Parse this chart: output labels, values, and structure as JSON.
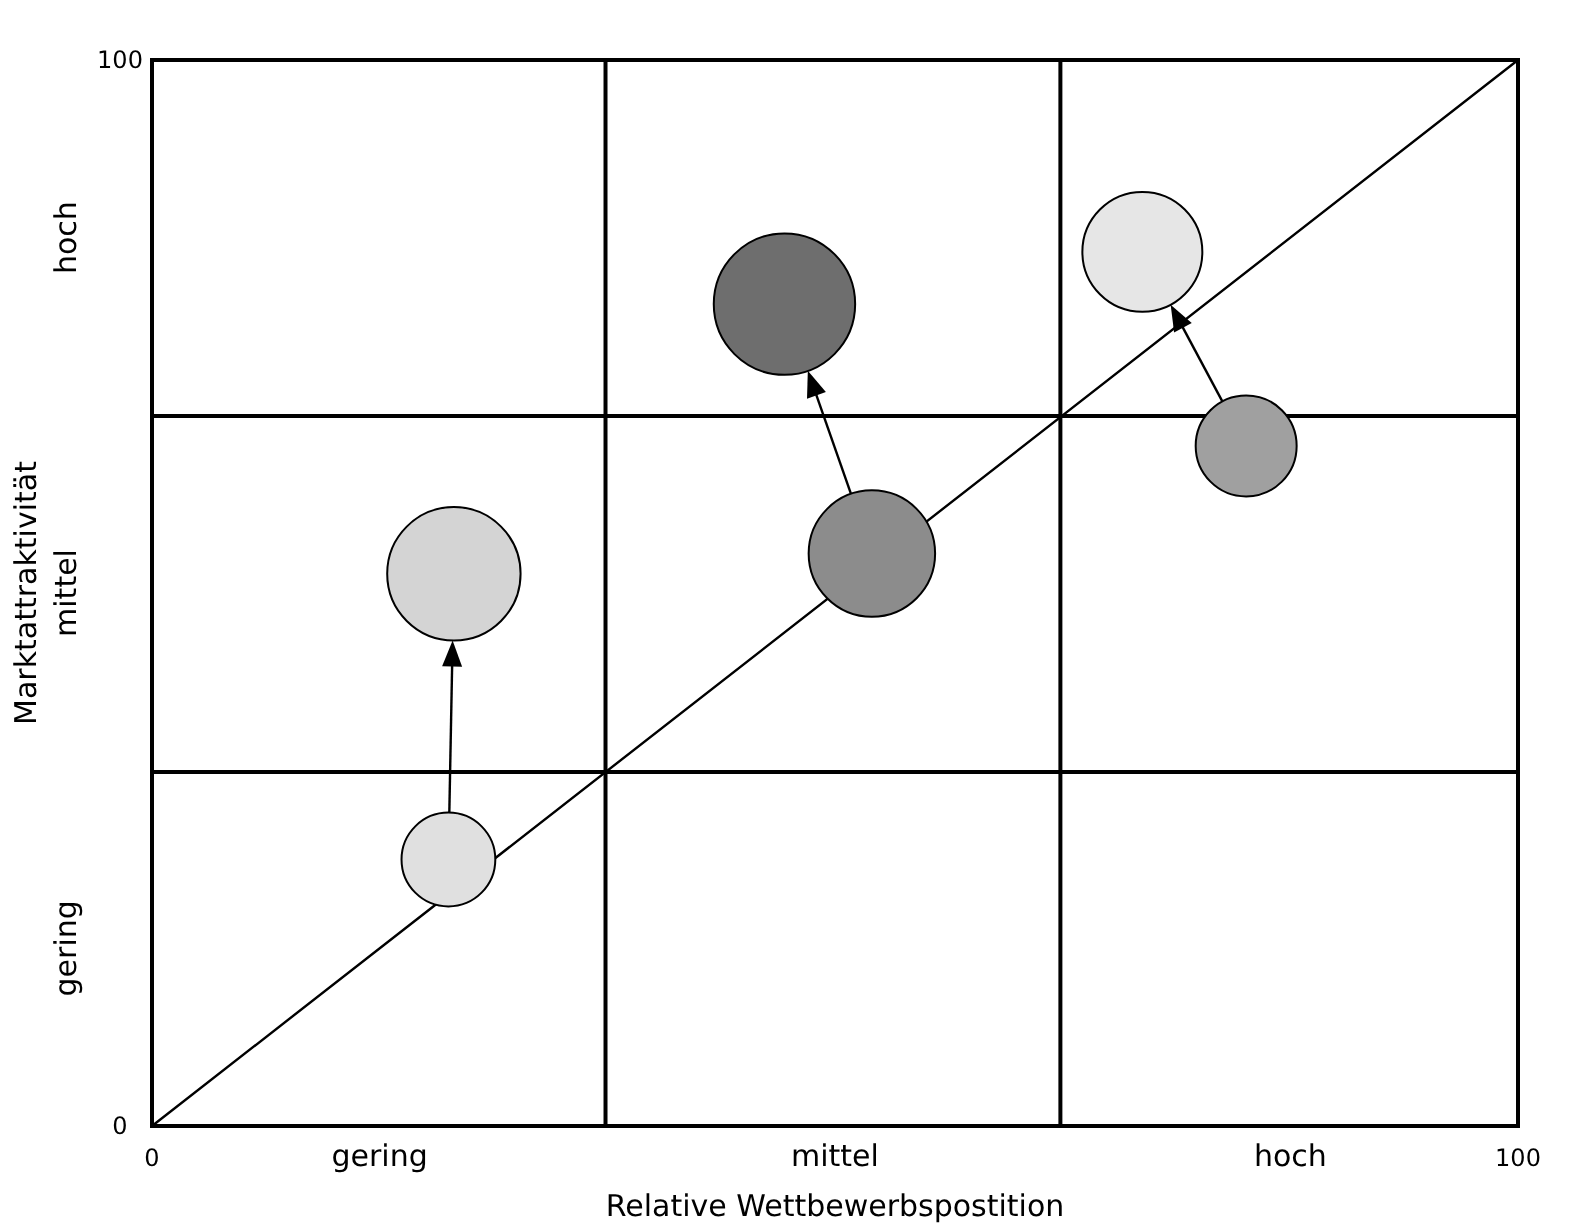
{
  "chart_data": {
    "type": "bubble",
    "xlabel": "Relative Wettbewerbspostition",
    "ylabel": "Marktattraktivität",
    "xlim": [
      0,
      100
    ],
    "ylim": [
      0,
      100
    ],
    "xticks": [
      0,
      100
    ],
    "yticks": [
      0,
      100
    ],
    "annotations": [
      "gering",
      "mittel",
      "hoch",
      "gering",
      "mittel",
      "hoch"
    ],
    "ref_lines": [
      {
        "axis": "x",
        "value": 33.2,
        "color": "#000000"
      },
      {
        "axis": "x",
        "value": 66.5,
        "color": "#000000"
      },
      {
        "axis": "y",
        "value": 33.2,
        "color": "#000000"
      },
      {
        "axis": "y",
        "value": 66.6,
        "color": "#000000"
      }
    ],
    "series": [
      {
        "x": [
          21.7,
          22.1
        ],
        "values": [
          25.0,
          51.8
        ],
        "sizes": [
          0.44,
          0.89
        ],
        "colors": [
          "#e0e0e0",
          "#d4d4d4"
        ]
      },
      {
        "x": [
          52.7,
          46.3
        ],
        "values": [
          53.7,
          77.1
        ],
        "sizes": [
          0.8,
          1
        ],
        "colors": [
          "#8c8c8c",
          "#6e6e6e"
        ]
      },
      {
        "x": [
          80.1,
          72.5
        ],
        "values": [
          63.8,
          82.0
        ],
        "sizes": [
          0.51,
          0.72
        ],
        "colors": [
          "#a0a0a0",
          "#e6e6e6"
        ]
      },
      {
        "type": "line",
        "x": [
          0,
          100
        ],
        "values": [
          0,
          100
        ],
        "color": "#000000"
      }
    ]
  }
}
